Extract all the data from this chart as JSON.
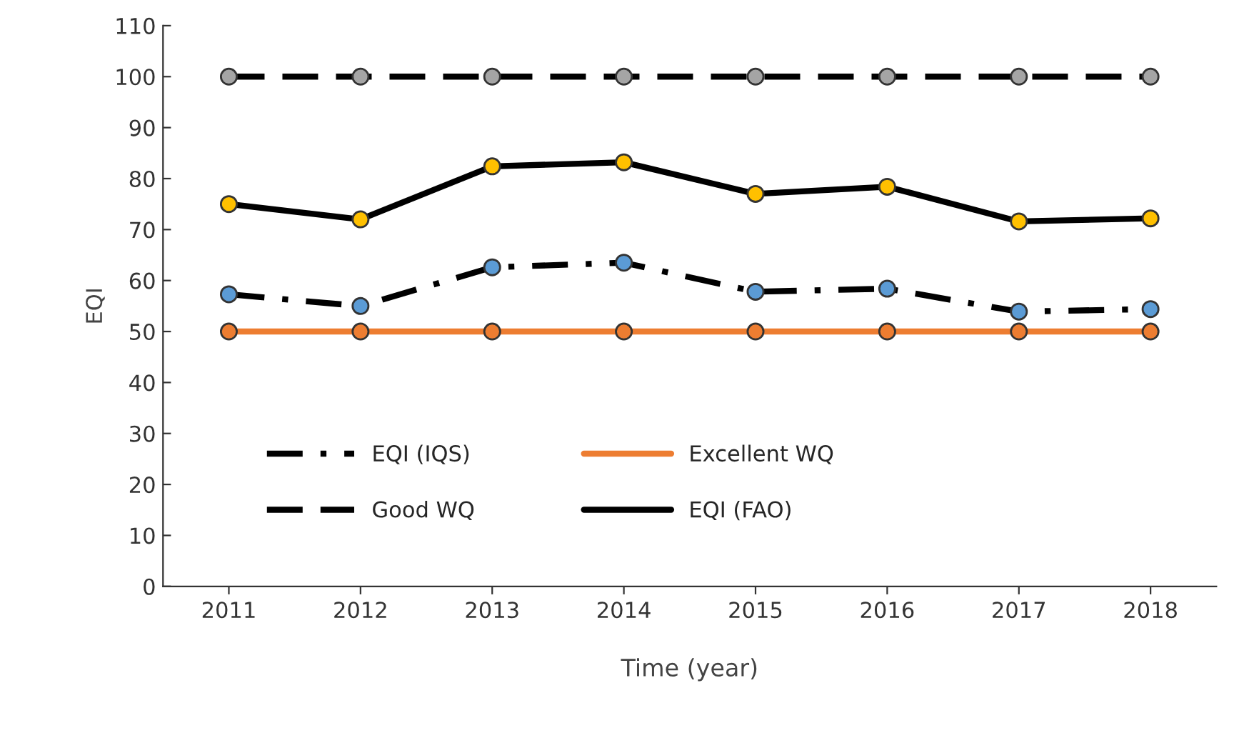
{
  "chart_data": {
    "type": "line",
    "xlabel": "Time (year)",
    "ylabel": "EQI",
    "categories": [
      "2011",
      "2012",
      "2013",
      "2014",
      "2015",
      "2016",
      "2017",
      "2018"
    ],
    "series": [
      {
        "name": "EQI (IQS)",
        "color": "#000000",
        "colors": [
          "#5b9bd5",
          "#5b9bd5",
          "#5b9bd5",
          "#5b9bd5",
          "#5b9bd5",
          "#5b9bd5",
          "#5b9bd5",
          "#5b9bd5"
        ],
        "line_style": "dashdot",
        "values": [
          57.3,
          55,
          62.6,
          63.5,
          57.8,
          58.4,
          53.9,
          54.4
        ]
      },
      {
        "name": "Excellent WQ",
        "color": "#ed7d31",
        "colors": [
          "#ed7d31",
          "#ed7d31",
          "#ed7d31",
          "#ed7d31",
          "#ed7d31",
          "#ed7d31",
          "#ed7d31",
          "#ed7d31"
        ],
        "line_style": "solid",
        "values": [
          50,
          50,
          50,
          50,
          50,
          50,
          50,
          50
        ]
      },
      {
        "name": "Good WQ",
        "color": "#000000",
        "colors": [
          "#a5a5a5",
          "#a5a5a5",
          "#a5a5a5",
          "#a5a5a5",
          "#a5a5a5",
          "#a5a5a5",
          "#a5a5a5",
          "#a5a5a5"
        ],
        "line_style": "dashed",
        "values": [
          100,
          100,
          100,
          100,
          100,
          100,
          100,
          100
        ]
      },
      {
        "name": "EQI (FAO)",
        "color": "#000000",
        "colors": [
          "#ffc000",
          "#ffc000",
          "#ffc000",
          "#ffc000",
          "#ffc000",
          "#ffc000",
          "#ffc000",
          "#ffc000"
        ],
        "line_style": "solid",
        "values": [
          75,
          72,
          82.4,
          83.2,
          77,
          78.4,
          71.6,
          72.2
        ]
      }
    ],
    "ylim": [
      0,
      110
    ],
    "yticks": [
      0,
      10,
      20,
      30,
      40,
      50,
      60,
      70,
      80,
      90,
      100,
      110
    ],
    "grid": false,
    "legend": "bottom left",
    "marker": "circle"
  }
}
